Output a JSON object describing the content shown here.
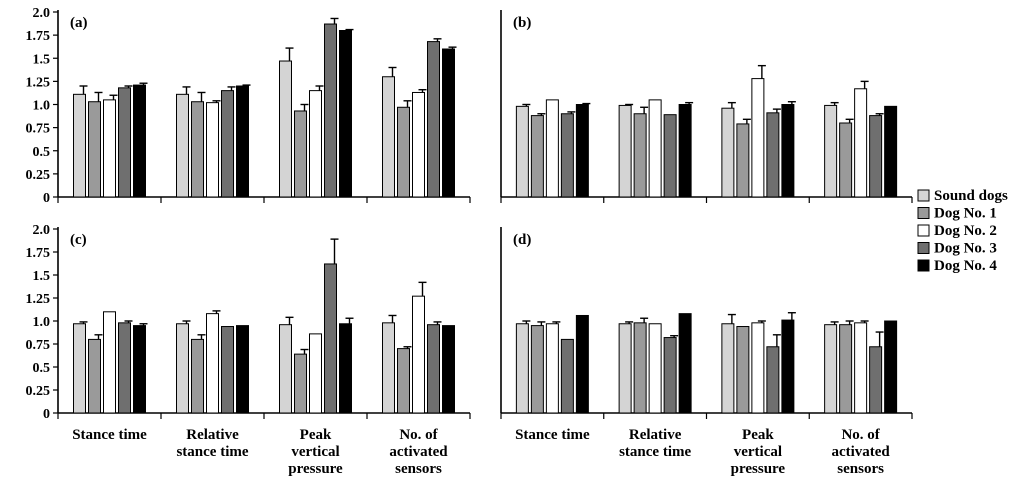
{
  "chart_data": [
    {
      "type": "bar",
      "panel_label": "(a)",
      "show_y_ticks": true,
      "show_x_labels": false,
      "ylim": [
        0,
        2.0
      ],
      "yticks": [
        "0",
        "0.25",
        "0.5",
        "0.75",
        "1.0",
        "1.25",
        "1.5",
        "1.75",
        "2.0"
      ],
      "categories": [
        "Stance time",
        "Relative stance time",
        "Peak vertical pressure",
        "No. of activated sensors"
      ],
      "series": [
        {
          "name": "Sound dogs",
          "values": [
            1.11,
            1.11,
            1.47,
            1.3
          ],
          "errors": [
            0.09,
            0.08,
            0.14,
            0.1
          ]
        },
        {
          "name": "Dog No. 1",
          "values": [
            1.03,
            1.03,
            0.93,
            0.97
          ],
          "errors": [
            0.1,
            0.1,
            0.07,
            0.07
          ]
        },
        {
          "name": "Dog No. 2",
          "values": [
            1.05,
            1.02,
            1.15,
            1.13
          ],
          "errors": [
            0.05,
            0.02,
            0.05,
            0.03
          ]
        },
        {
          "name": "Dog No. 3",
          "values": [
            1.18,
            1.15,
            1.87,
            1.68
          ],
          "errors": [
            0.02,
            0.04,
            0.06,
            0.03
          ]
        },
        {
          "name": "Dog No. 4",
          "values": [
            1.21,
            1.2,
            1.8,
            1.6
          ],
          "errors": [
            0.02,
            0.01,
            0.01,
            0.02
          ]
        }
      ]
    },
    {
      "type": "bar",
      "panel_label": "(b)",
      "show_y_ticks": false,
      "show_x_labels": false,
      "ylim": [
        0,
        2.0
      ],
      "yticks": [],
      "categories": [
        "Stance time",
        "Relative stance time",
        "Peak vertical pressure",
        "No. of activated sensors"
      ],
      "series": [
        {
          "name": "Sound dogs",
          "values": [
            0.98,
            0.99,
            0.96,
            0.99
          ],
          "errors": [
            0.02,
            0.01,
            0.06,
            0.03
          ]
        },
        {
          "name": "Dog No. 1",
          "values": [
            0.88,
            0.9,
            0.79,
            0.8
          ],
          "errors": [
            0.02,
            0.07,
            0.05,
            0.04
          ]
        },
        {
          "name": "Dog No. 2",
          "values": [
            1.05,
            1.05,
            1.28,
            1.17
          ],
          "errors": [
            0.0,
            0.0,
            0.14,
            0.08
          ]
        },
        {
          "name": "Dog No. 3",
          "values": [
            0.9,
            0.89,
            0.91,
            0.88
          ],
          "errors": [
            0.02,
            0.0,
            0.04,
            0.02
          ]
        },
        {
          "name": "Dog No. 4",
          "values": [
            1.0,
            1.0,
            1.0,
            0.98
          ],
          "errors": [
            0.01,
            0.02,
            0.03,
            0.0
          ]
        }
      ]
    },
    {
      "type": "bar",
      "panel_label": "(c)",
      "show_y_ticks": true,
      "show_x_labels": true,
      "ylim": [
        0,
        2.0
      ],
      "yticks": [
        "0",
        "0.25",
        "0.5",
        "0.75",
        "1.0",
        "1.25",
        "1.5",
        "1.75",
        "2.0"
      ],
      "categories": [
        "Stance time",
        "Relative stance time",
        "Peak vertical pressure",
        "No. of activated sensors"
      ],
      "category_lines": [
        [
          "Stance time"
        ],
        [
          "Relative",
          "stance time"
        ],
        [
          "Peak",
          "vertical",
          "pressure"
        ],
        [
          "No. of",
          "activated",
          "sensors"
        ]
      ],
      "series": [
        {
          "name": "Sound dogs",
          "values": [
            0.97,
            0.97,
            0.96,
            0.98
          ],
          "errors": [
            0.02,
            0.03,
            0.08,
            0.08
          ]
        },
        {
          "name": "Dog No. 1",
          "values": [
            0.8,
            0.8,
            0.64,
            0.7
          ],
          "errors": [
            0.05,
            0.05,
            0.05,
            0.02
          ]
        },
        {
          "name": "Dog No. 2",
          "values": [
            1.1,
            1.08,
            0.86,
            1.27
          ],
          "errors": [
            0.0,
            0.03,
            0.0,
            0.15
          ]
        },
        {
          "name": "Dog No. 3",
          "values": [
            0.98,
            0.94,
            1.62,
            0.96
          ],
          "errors": [
            0.02,
            0.0,
            0.27,
            0.03
          ]
        },
        {
          "name": "Dog No. 4",
          "values": [
            0.95,
            0.95,
            0.97,
            0.95
          ],
          "errors": [
            0.02,
            0.0,
            0.06,
            0.0
          ]
        }
      ]
    },
    {
      "type": "bar",
      "panel_label": "(d)",
      "show_y_ticks": false,
      "show_x_labels": true,
      "ylim": [
        0,
        2.0
      ],
      "yticks": [],
      "categories": [
        "Stance time",
        "Relative stance time",
        "Peak vertical pressure",
        "No. of activated sensors"
      ],
      "category_lines": [
        [
          "Stance time"
        ],
        [
          "Relative",
          "stance time"
        ],
        [
          "Peak",
          "vertical",
          "pressure"
        ],
        [
          "No. of",
          "activated",
          "sensors"
        ]
      ],
      "series": [
        {
          "name": "Sound dogs",
          "values": [
            0.97,
            0.97,
            0.97,
            0.96
          ],
          "errors": [
            0.03,
            0.02,
            0.1,
            0.03
          ]
        },
        {
          "name": "Dog No. 1",
          "values": [
            0.95,
            0.98,
            0.94,
            0.96
          ],
          "errors": [
            0.04,
            0.05,
            0.0,
            0.04
          ]
        },
        {
          "name": "Dog No. 2",
          "values": [
            0.97,
            0.97,
            0.98,
            0.98
          ],
          "errors": [
            0.02,
            0.0,
            0.02,
            0.02
          ]
        },
        {
          "name": "Dog No. 3",
          "values": [
            0.8,
            0.82,
            0.72,
            0.72
          ],
          "errors": [
            0.0,
            0.02,
            0.13,
            0.16
          ]
        },
        {
          "name": "Dog No. 4",
          "values": [
            1.06,
            1.08,
            1.01,
            1.0
          ],
          "errors": [
            0.0,
            0.0,
            0.08,
            0.0
          ]
        }
      ]
    }
  ],
  "legend": {
    "placement": "right",
    "items": [
      {
        "label": "Sound dogs",
        "color": "#d4d4d4"
      },
      {
        "label": "Dog No. 1",
        "color": "#9a9a9a"
      },
      {
        "label": "Dog No. 2",
        "color": "#ffffff"
      },
      {
        "label": "Dog No. 3",
        "color": "#6f6f6f"
      },
      {
        "label": "Dog No. 4",
        "color": "#000000"
      }
    ]
  },
  "colors": {
    "series": [
      "#d4d4d4",
      "#9a9a9a",
      "#ffffff",
      "#6f6f6f",
      "#000000"
    ],
    "stroke": "#000000"
  }
}
